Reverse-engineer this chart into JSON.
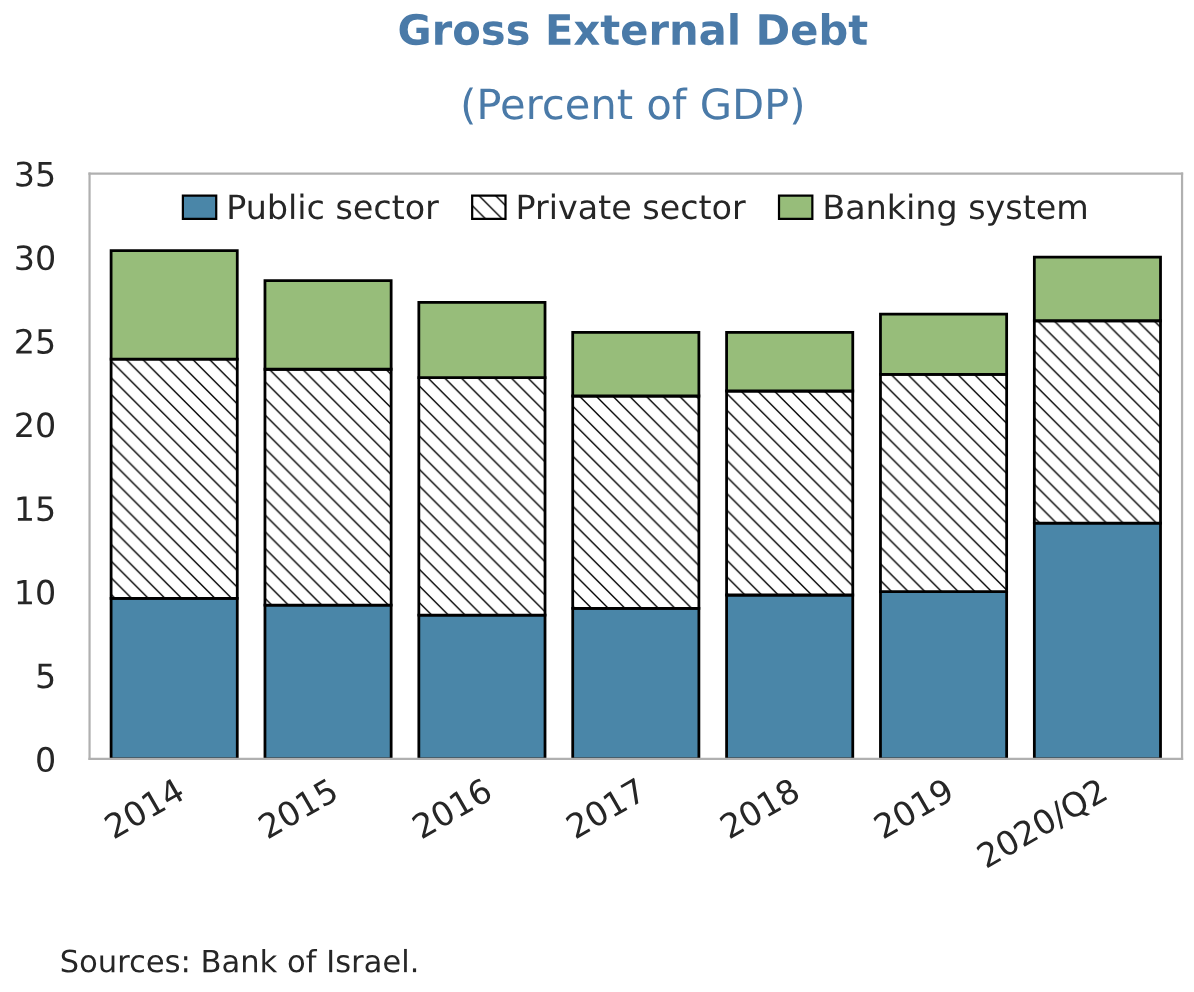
{
  "chart_data": {
    "type": "bar",
    "title": "Gross External Debt",
    "subtitle": "(Percent of GDP)",
    "stacked": true,
    "categories": [
      "2014",
      "2015",
      "2016",
      "2017",
      "2018",
      "2019",
      "2020/Q2"
    ],
    "series": [
      {
        "name": "Public sector",
        "color": "#4a86a8",
        "values": [
          9.6,
          9.2,
          8.6,
          9.0,
          9.8,
          10.0,
          14.1
        ]
      },
      {
        "name": "Private sector",
        "color": "#000000",
        "values": [
          14.3,
          14.1,
          14.2,
          12.7,
          12.2,
          13.0,
          12.1
        ]
      },
      {
        "name": "Banking system",
        "color": "#97bd7a",
        "values": [
          6.5,
          5.3,
          4.5,
          3.8,
          3.5,
          3.6,
          3.8
        ]
      }
    ],
    "ylim": [
      0,
      35
    ],
    "yticks": [
      0,
      5,
      10,
      15,
      20,
      25,
      30,
      35
    ],
    "grid": false,
    "legend": "top",
    "annotations": [
      "Sources: Bank of Israel."
    ]
  }
}
